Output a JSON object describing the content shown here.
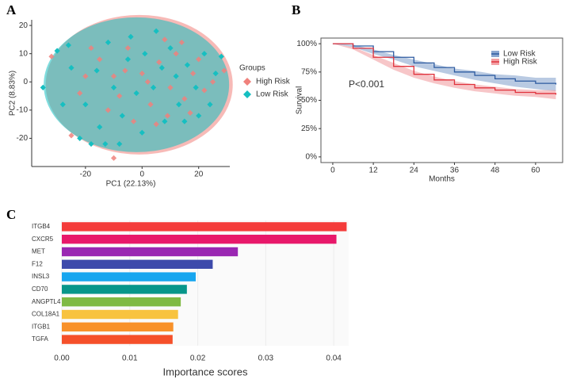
{
  "chart_data": [
    {
      "type": "scatter",
      "panel": "A",
      "xlabel": "PC1 (22.13%)",
      "ylabel": "PC2 (8.83%)",
      "legend_title": "Groups",
      "xlim": [
        -39,
        31
      ],
      "ylim": [
        -30,
        22
      ],
      "xticks": [
        -20,
        0,
        20
      ],
      "yticks": [
        -20,
        -10,
        0,
        10,
        20
      ],
      "series": [
        {
          "name": "High Risk",
          "color": "#f0817c",
          "x": [
            -32,
            -25,
            -10,
            29,
            -20,
            -15,
            -8,
            -5,
            0,
            3,
            6,
            10,
            12,
            15,
            18,
            20,
            22,
            -12,
            -3,
            5,
            8,
            -18,
            -22,
            25,
            2,
            -6,
            14,
            -10,
            9,
            17
          ],
          "y": [
            9,
            -19,
            -27,
            4,
            2,
            8,
            -5,
            12,
            3,
            -8,
            7,
            -2,
            10,
            -6,
            3,
            8,
            -3,
            -10,
            -14,
            -15,
            15,
            12,
            -4,
            0,
            0,
            4,
            14,
            2,
            -12,
            -11
          ]
        },
        {
          "name": "Low Risk",
          "color": "#16bfc1",
          "x": [
            -35,
            -30,
            -26,
            -22,
            -18,
            -13,
            -8,
            -15,
            -20,
            -25,
            -10,
            -5,
            -2,
            1,
            4,
            7,
            10,
            13,
            16,
            19,
            22,
            24,
            26,
            28,
            -12,
            -4,
            8,
            15,
            20,
            -28,
            0,
            -7,
            12,
            -16,
            5
          ],
          "y": [
            -2,
            11,
            13,
            -20,
            -22,
            -22,
            -22,
            -16,
            -8,
            5,
            -2,
            8,
            -4,
            10,
            -2,
            5,
            12,
            -8,
            6,
            -2,
            10,
            -8,
            3,
            9,
            14,
            16,
            -14,
            -14,
            -12,
            -8,
            -18,
            -12,
            2,
            4,
            18
          ]
        }
      ]
    },
    {
      "type": "line",
      "panel": "B",
      "xlabel": "Months",
      "ylabel": "Survival",
      "annotation": "P<0.001",
      "xlim": [
        -3.5,
        68
      ],
      "ylim": [
        -5,
        105
      ],
      "xticks": [
        0,
        12,
        24,
        36,
        48,
        60
      ],
      "yticks": [
        {
          "value": 0,
          "label": "0%"
        },
        {
          "value": 25,
          "label": "25%"
        },
        {
          "value": 50,
          "label": "50%"
        },
        {
          "value": 75,
          "label": "75%"
        },
        {
          "value": 100,
          "label": "100%"
        }
      ],
      "x": [
        0,
        6,
        12,
        18,
        24,
        30,
        36,
        42,
        48,
        54,
        60,
        66
      ],
      "series": [
        {
          "name": "Low Risk",
          "color": "#2c5aa0",
          "band_color": "#8aa6cf",
          "values": [
            100,
            98,
            93,
            88,
            83,
            79,
            75,
            72,
            69,
            67,
            65,
            64
          ],
          "lower": [
            100,
            97,
            91,
            86,
            80,
            76,
            72,
            68,
            65,
            62,
            60,
            58
          ],
          "upper": [
            100,
            99,
            95,
            90,
            86,
            82,
            78,
            76,
            73,
            72,
            70,
            70
          ]
        },
        {
          "name": "High Risk",
          "color": "#e0323c",
          "band_color": "#f2a0a4",
          "values": [
            100,
            96,
            88,
            80,
            73,
            68,
            64,
            61,
            59,
            57,
            56,
            55
          ],
          "lower": [
            100,
            95,
            86,
            77,
            70,
            65,
            61,
            58,
            56,
            54,
            53,
            51
          ],
          "upper": [
            100,
            97,
            90,
            83,
            76,
            71,
            67,
            64,
            62,
            60,
            59,
            59
          ]
        }
      ]
    },
    {
      "type": "bar",
      "orientation": "horizontal",
      "panel": "C",
      "xlabel": "Importance scores",
      "xlim": [
        0,
        0.0422
      ],
      "xticks": [
        {
          "value": 0,
          "label": "0.00"
        },
        0.01,
        0.02,
        0.03,
        0.04
      ],
      "categories": [
        "ITGB4",
        "CXCR5",
        "MET",
        "F12",
        "INSL3",
        "CD70",
        "ANGPTL4",
        "COL18A1",
        "ITGB1",
        "TGFA"
      ],
      "values": [
        0.0419,
        0.0404,
        0.0259,
        0.0222,
        0.0197,
        0.0184,
        0.0175,
        0.0171,
        0.0164,
        0.0163
      ],
      "colors": [
        "#f43b3a",
        "#e8186a",
        "#9a27b2",
        "#3d4aab",
        "#17a6ef",
        "#07968a",
        "#7fba43",
        "#f8c33f",
        "#f8912a",
        "#f5502a"
      ]
    }
  ]
}
